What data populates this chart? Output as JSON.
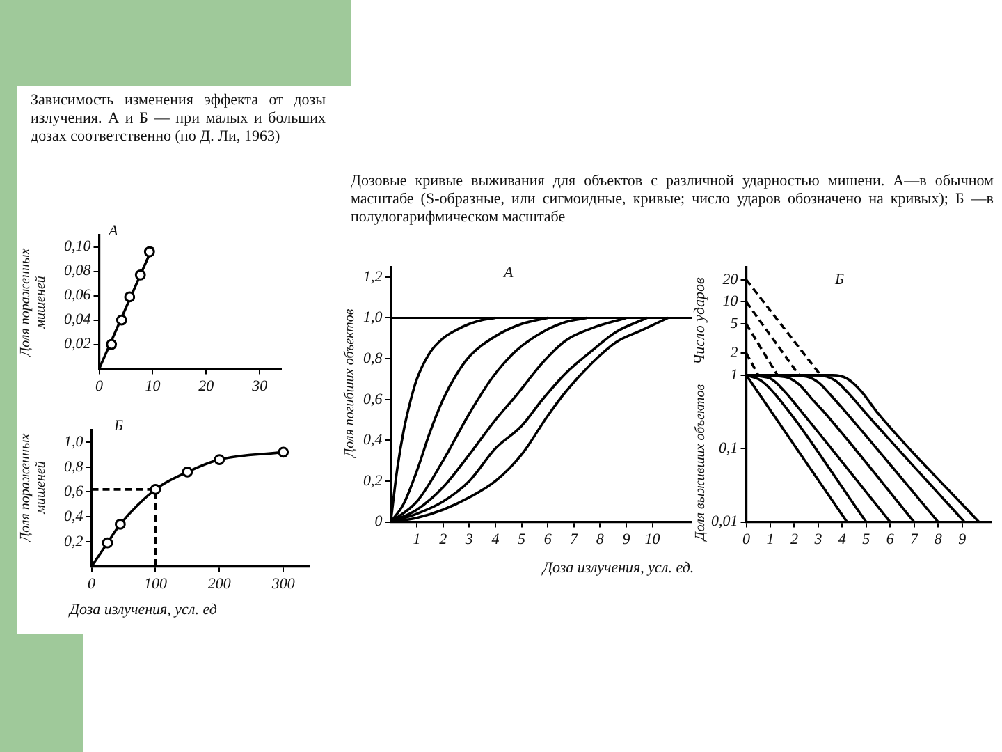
{
  "chart_data": [
    {
      "type": "scatter",
      "title": "Зависимость изменения эффекта от дозы излучения. А и Б — при малых и больших дозах соответственно (по Д. Ли, 1963)",
      "ylabel": "Доля пораженных мишеней",
      "annotations": [
        "A"
      ],
      "xlim": [
        0,
        34
      ],
      "xticks": [
        0,
        10,
        20,
        30
      ],
      "ylim": [
        0,
        0.11
      ],
      "yticks": [
        {
          "value": 0.02,
          "label": "0,02"
        },
        {
          "value": 0.04,
          "label": "0,04"
        },
        {
          "value": 0.06,
          "label": "0,06"
        },
        {
          "value": 0.08,
          "label": "0,08"
        },
        {
          "value": 0.1,
          "label": "0,10"
        }
      ],
      "series": [
        {
          "type": "line",
          "color": "#000000",
          "marker": "none",
          "x": [
            0,
            10
          ],
          "values": [
            0,
            0.1
          ]
        },
        {
          "type": "scatter",
          "color": "#000000",
          "marker": "circle",
          "x": [
            2.3,
            4.2,
            5.7,
            7.7,
            9.4
          ],
          "values": [
            0.02,
            0.04,
            0.059,
            0.077,
            0.096
          ]
        }
      ]
    },
    {
      "type": "scatter",
      "xlabel": "Доза излучения, усл. ед",
      "ylabel": "Доля пораженных мишеней",
      "annotations": [
        "Б"
      ],
      "xlim": [
        0,
        340
      ],
      "xticks": [
        0,
        100,
        200,
        300
      ],
      "ylim": [
        0,
        1.1
      ],
      "yticks": [
        {
          "value": 0.2,
          "label": "0,2"
        },
        {
          "value": 0.4,
          "label": "0,4"
        },
        {
          "value": 0.6,
          "label": "0,6"
        },
        {
          "value": 0.8,
          "label": "0,8"
        },
        {
          "value": 1,
          "label": "1,0"
        }
      ],
      "series": [
        {
          "type": "line",
          "color": "#000000",
          "marker": "none",
          "x": [
            0,
            25,
            45,
            100,
            150,
            200,
            300
          ],
          "values": [
            0,
            0.19,
            0.34,
            0.62,
            0.76,
            0.86,
            0.92
          ]
        },
        {
          "type": "scatter",
          "color": "#000000",
          "marker": "circle",
          "x": [
            25,
            45,
            100,
            150,
            200,
            300
          ],
          "values": [
            0.19,
            0.34,
            0.62,
            0.76,
            0.86,
            0.92
          ]
        },
        {
          "type": "line",
          "color": "#000000",
          "marker": "none",
          "line_style": "dashed",
          "x": [
            0,
            100,
            100
          ],
          "values": [
            0.62,
            0.62,
            0
          ]
        }
      ]
    },
    {
      "type": "line",
      "title": "Дозовые кривые выживания для объектов с различной ударностью мишени. А—в обычном масштабе (S-образные, или сигмоидные, кривые; число ударов обозначено на кривых); Б —в полулогарифмическом масштабе",
      "xlabel": "Доза излучения, усл. ед.",
      "ylabel": "Доля погибших объектов",
      "annotations": [
        "A"
      ],
      "xlim": [
        0,
        11.5
      ],
      "xticks": [
        1,
        2,
        3,
        4,
        5,
        6,
        7,
        8,
        9,
        10
      ],
      "ylim": [
        0,
        1.25
      ],
      "yticks": [
        0,
        {
          "value": 0.2,
          "label": "0,2"
        },
        {
          "value": 0.4,
          "label": "0,4"
        },
        {
          "value": 0.6,
          "label": "0,6"
        },
        {
          "value": 0.8,
          "label": "0,8"
        },
        {
          "value": 1,
          "label": "1,0"
        },
        {
          "value": 1.2,
          "label": "1,2"
        }
      ],
      "ref_lines": [
        {
          "axis": "y",
          "value": 1,
          "label": null
        }
      ],
      "series": [
        {
          "color": "#000000",
          "x": [
            0,
            0.25,
            0.5,
            0.75,
            1,
            1.5,
            2,
            2.5,
            3,
            3.5,
            4
          ],
          "values": [
            0,
            0.26,
            0.45,
            0.59,
            0.7,
            0.83,
            0.9,
            0.94,
            0.97,
            0.99,
            1
          ]
        },
        {
          "color": "#000000",
          "x": [
            0,
            0.5,
            1,
            1.5,
            2,
            2.5,
            3,
            4,
            5,
            6
          ],
          "values": [
            0,
            0.09,
            0.25,
            0.44,
            0.6,
            0.72,
            0.81,
            0.91,
            0.97,
            1
          ]
        },
        {
          "color": "#000000",
          "x": [
            0,
            1,
            2,
            3,
            3.9,
            4.8,
            5.8,
            6.7,
            7.5
          ],
          "values": [
            0,
            0.1,
            0.3,
            0.53,
            0.71,
            0.84,
            0.93,
            0.98,
            1
          ]
        },
        {
          "color": "#000000",
          "x": [
            0,
            1,
            2,
            3,
            4,
            4.8,
            5.8,
            6.7,
            7.7,
            9
          ],
          "values": [
            0,
            0.06,
            0.17,
            0.33,
            0.5,
            0.62,
            0.78,
            0.89,
            0.95,
            1
          ]
        },
        {
          "color": "#000000",
          "x": [
            0,
            1,
            2,
            3,
            4,
            5,
            5.8,
            6.7,
            7.7,
            8.6,
            9.8
          ],
          "values": [
            0,
            0.04,
            0.1,
            0.2,
            0.36,
            0.47,
            0.6,
            0.73,
            0.84,
            0.93,
            1
          ]
        },
        {
          "color": "#000000",
          "x": [
            0,
            1,
            2,
            3,
            4,
            5,
            6,
            6.7,
            7.7,
            8.6,
            9.6,
            10.6
          ],
          "values": [
            0,
            0.02,
            0.06,
            0.12,
            0.2,
            0.33,
            0.52,
            0.64,
            0.78,
            0.88,
            0.94,
            1
          ]
        }
      ]
    },
    {
      "type": "line",
      "ylabel": "Доля выживших объектов",
      "annotations": [
        "Б",
        "Число ударов"
      ],
      "log": "y",
      "xlim": [
        0,
        10.2
      ],
      "xticks": [
        0,
        1,
        2,
        3,
        4,
        5,
        6,
        7,
        8,
        9
      ],
      "ylim": [
        0.01,
        30
      ],
      "yticks": [
        {
          "value": 0.01,
          "label": "0,01"
        },
        {
          "value": 0.1,
          "label": "0,1"
        },
        1,
        2,
        5,
        10,
        20
      ],
      "series": [
        {
          "color": "#000000",
          "x": [
            0,
            4.2
          ],
          "values": [
            1,
            0.01
          ]
        },
        {
          "color": "#000000",
          "x": [
            0,
            0.6,
            1.2,
            5
          ],
          "values": [
            1,
            0.85,
            0.55,
            0.01
          ]
        },
        {
          "color": "#000000",
          "x": [
            0,
            1,
            1.6,
            2.2,
            6
          ],
          "values": [
            1,
            0.9,
            0.6,
            0.35,
            0.01
          ]
        },
        {
          "color": "#000000",
          "x": [
            0,
            1.6,
            2.2,
            2.8,
            3.3,
            7
          ],
          "values": [
            1,
            0.95,
            0.75,
            0.45,
            0.3,
            0.01
          ]
        },
        {
          "color": "#000000",
          "x": [
            0,
            2.4,
            3,
            3.6,
            4.2,
            8
          ],
          "values": [
            1,
            0.97,
            0.8,
            0.5,
            0.3,
            0.01
          ]
        },
        {
          "color": "#000000",
          "x": [
            0,
            3,
            3.7,
            4.3,
            5,
            9.1
          ],
          "values": [
            1,
            1,
            0.85,
            0.55,
            0.3,
            0.01
          ]
        },
        {
          "color": "#000000",
          "x": [
            0,
            3.6,
            4.2,
            4.8,
            5.5,
            9.7
          ],
          "values": [
            1,
            1,
            0.9,
            0.6,
            0.3,
            0.01
          ]
        },
        {
          "color": "#000000",
          "line_style": "dashed",
          "x": [
            0,
            3.1
          ],
          "values": [
            20,
            1
          ]
        },
        {
          "color": "#000000",
          "line_style": "dashed",
          "x": [
            0,
            2.2
          ],
          "values": [
            10,
            1
          ]
        },
        {
          "color": "#000000",
          "line_style": "dashed",
          "x": [
            0,
            1.3
          ],
          "values": [
            5,
            1
          ]
        },
        {
          "color": "#000000",
          "line_style": "dashed",
          "x": [
            0,
            0.5
          ],
          "values": [
            2,
            1
          ]
        }
      ]
    }
  ]
}
